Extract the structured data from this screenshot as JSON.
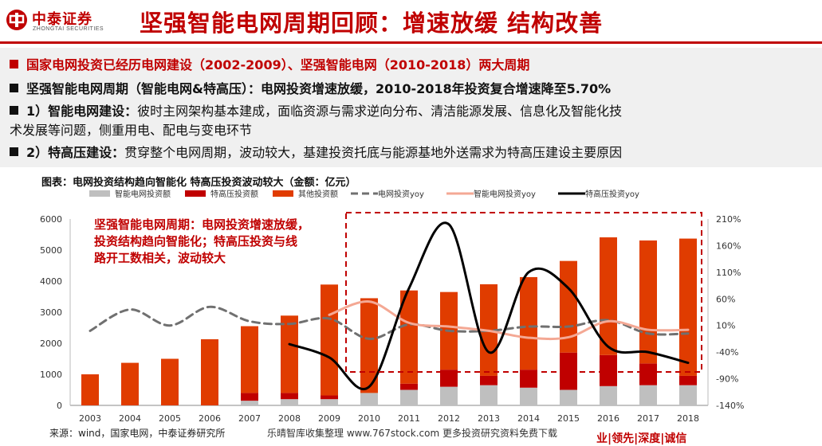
{
  "header": {
    "logo_cn": "中泰证券",
    "logo_en": "ZHONGTAI SECURITIES",
    "title": "坚强智能电网周期回顾：增速放缓 结构改善"
  },
  "bullets": [
    {
      "lead": "国家电网投资已经历电网建设（2002-2009）、坚强智能电网（2010-2018）两大周期",
      "rest": "",
      "color": "red"
    },
    {
      "lead": "坚强智能电网周期（智能电网&特高压）：电网投资增速放缓，2010-2018年投资复合增速降至5.70%",
      "rest": "",
      "color": "dark"
    },
    {
      "lead": "1）智能电网建设：",
      "rest": "彼时主网架构基本建成，面临资源与需求逆向分布、清洁能源发展、信息化及智能化技",
      "color": "dark"
    },
    {
      "lead": "",
      "rest": "术发展等问题，侧重用电、配电与变电环节",
      "color": "dark"
    },
    {
      "lead": "2）特高压建设：",
      "rest": "贯穿整个电网周期，波动较大，基建投资托底与能源基地外送需求为特高压建设主要原因",
      "color": "dark"
    }
  ],
  "chart_caption": "图表：电网投资结构趋向智能化 特高压投资波动较大（金额：亿元）",
  "chart_data": {
    "type": "bar",
    "stacked": true,
    "categories": [
      "2003",
      "2004",
      "2005",
      "2006",
      "2007",
      "2008",
      "2009",
      "2010",
      "2011",
      "2012",
      "2013",
      "2014",
      "2015",
      "2016",
      "2017",
      "2018"
    ],
    "series": [
      {
        "name": "智能电网投资额",
        "kind": "bar",
        "axis": "left",
        "color": "#bfbfbf",
        "values": [
          0,
          0,
          0,
          0,
          150,
          200,
          200,
          400,
          500,
          600,
          650,
          570,
          500,
          620,
          650,
          650
        ]
      },
      {
        "name": "特高压投资额",
        "kind": "bar",
        "axis": "left",
        "color": "#c00000",
        "values": [
          0,
          0,
          0,
          0,
          250,
          200,
          120,
          0,
          200,
          550,
          300,
          580,
          1200,
          1000,
          700,
          300
        ]
      },
      {
        "name": "其他投资额",
        "kind": "bar",
        "axis": "left",
        "color": "#e03c00",
        "values": [
          1000,
          1370,
          1500,
          2130,
          2150,
          2490,
          3570,
          3050,
          3000,
          2500,
          2950,
          2980,
          2950,
          3790,
          3960,
          4420
        ]
      },
      {
        "name": "电网投资yoy",
        "kind": "line",
        "axis": "right",
        "color": "#707070",
        "dash": true,
        "values": [
          0,
          40,
          10,
          45,
          18,
          13,
          23,
          -15,
          12,
          0,
          0,
          8,
          8,
          20,
          -5,
          -5
        ]
      },
      {
        "name": "智能电网投资yoy",
        "kind": "line",
        "axis": "right",
        "color": "#f4a894",
        "dash": false,
        "values": [
          null,
          null,
          null,
          null,
          null,
          null,
          30,
          55,
          15,
          8,
          0,
          -13,
          -12,
          18,
          2,
          2
        ]
      },
      {
        "name": "特高压投资yoy",
        "kind": "line",
        "axis": "right",
        "color": "#000000",
        "dash": false,
        "values": [
          null,
          null,
          null,
          null,
          null,
          -25,
          -50,
          -105,
          80,
          200,
          -40,
          110,
          80,
          -30,
          -40,
          -60
        ]
      }
    ],
    "ylim": [
      0,
      6000
    ],
    "yticks": [
      0,
      1000,
      2000,
      3000,
      4000,
      5000,
      6000
    ],
    "y2lim": [
      -140,
      210
    ],
    "y2ticks": [
      "-140%",
      "-90%",
      "-40%",
      "10%",
      "60%",
      "110%",
      "160%",
      "210%"
    ],
    "legend": "top",
    "annotation": {
      "lines": [
        "坚强智能电网周期：电网投资增速放缓，",
        "投资结构趋向智能化；特高压投资与线",
        "路开工数相关，波动较大"
      ],
      "color": "#c00000",
      "highlight_range": [
        "2010",
        "2018"
      ]
    }
  },
  "footer": {
    "source": "来源：wind，国家电网，中泰证券研究所",
    "watermark": "乐晴智库收集整理 www.767stock.com 更多投资研究资料免费下载",
    "slogan": "业|领先|深度|诚信"
  }
}
